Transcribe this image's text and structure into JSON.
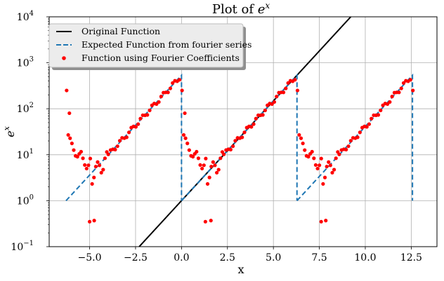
{
  "chart_data": {
    "type": "line",
    "title": "Plot of e^x",
    "xlabel": "x",
    "ylabel": "e^x",
    "xlim": [
      -7.2,
      13.9
    ],
    "ylim": [
      0.1,
      10000
    ],
    "yscale": "log",
    "grid": true,
    "legend_position": "top-left",
    "x_ticks": [
      -5.0,
      -2.5,
      0.0,
      2.5,
      5.0,
      7.5,
      10.0,
      12.5
    ],
    "x_tick_labels": [
      "−5.0",
      "−2.5",
      "0.0",
      "2.5",
      "5.0",
      "7.5",
      "10.0",
      "12.5"
    ],
    "y_ticks": [
      0.1,
      1,
      10,
      100,
      1000,
      10000
    ],
    "y_tick_labels": [
      {
        "base": "10",
        "exp": "−1"
      },
      {
        "base": "10",
        "exp": "0"
      },
      {
        "base": "10",
        "exp": "1"
      },
      {
        "base": "10",
        "exp": "2"
      },
      {
        "base": "10",
        "exp": "3"
      },
      {
        "base": "10",
        "exp": "4"
      }
    ],
    "series": [
      {
        "name": "Original Function",
        "style": "solid",
        "color": "#000000",
        "x": [
          -2.3,
          9.21
        ]
      },
      {
        "name": "Expected Function from fourier series",
        "style": "dashed",
        "color": "#1f77b4",
        "period": 6.2832,
        "x_start": -6.2832,
        "periods": 3
      },
      {
        "name": "Function using Fourier Coefficients",
        "style": "markers",
        "color": "#ff0000",
        "outliers": [
          {
            "x": -6.25,
            "y": 250
          },
          {
            "x": -6.1,
            "y": 80
          },
          {
            "x": 0.03,
            "y": 250
          },
          {
            "x": 0.18,
            "y": 80
          },
          {
            "x": 6.31,
            "y": 250
          },
          {
            "x": 12.59,
            "y": 250
          },
          {
            "x": -5.0,
            "y": 0.35
          },
          {
            "x": -4.75,
            "y": 0.37
          },
          {
            "x": 1.3,
            "y": 0.35
          },
          {
            "x": 1.6,
            "y": 0.37
          },
          {
            "x": 7.6,
            "y": 0.35
          },
          {
            "x": 7.85,
            "y": 0.37
          }
        ]
      }
    ]
  }
}
